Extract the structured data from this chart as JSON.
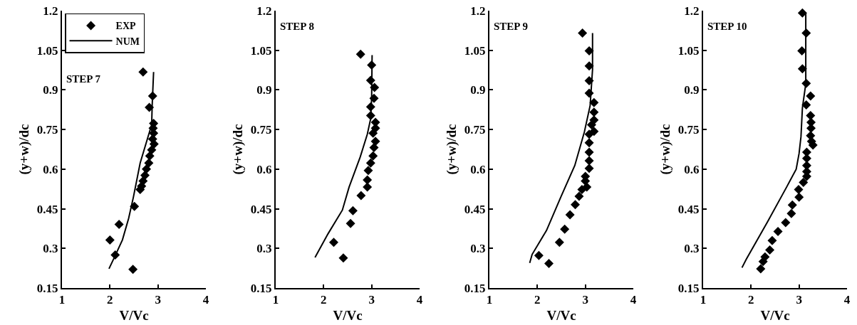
{
  "chart_data": [
    {
      "type": "scatter",
      "title": "STEP 7",
      "xlabel": "V/Vc",
      "ylabel": "(y+w)/dc",
      "xlim": [
        1,
        4
      ],
      "xticks": [
        1,
        2,
        3,
        4
      ],
      "ylim": [
        0.15,
        1.2
      ],
      "yticks": [
        0.15,
        0.3,
        0.45,
        0.6,
        0.75,
        0.9,
        1.05,
        1.2
      ],
      "grid": false,
      "legend": "top left",
      "series": [
        {
          "name": "EXP",
          "marker": "diamond",
          "color": "#000000",
          "x": [
            2.69,
            2.89,
            2.82,
            2.91,
            2.9,
            2.91,
            2.89,
            2.92,
            2.87,
            2.83,
            2.81,
            2.76,
            2.73,
            2.69,
            2.66,
            2.63,
            2.51,
            2.19,
            2.0,
            2.11,
            2.48
          ],
          "values": [
            0.968,
            0.877,
            0.834,
            0.773,
            0.755,
            0.736,
            0.714,
            0.695,
            0.673,
            0.65,
            0.623,
            0.6,
            0.577,
            0.555,
            0.536,
            0.523,
            0.459,
            0.391,
            0.332,
            0.275,
            0.221
          ]
        },
        {
          "name": "NUM",
          "type": "line",
          "line_style": "solid",
          "color": "#000000",
          "x": [
            1.98,
            2.11,
            2.26,
            2.39,
            2.49,
            2.63,
            2.81,
            2.87,
            2.88,
            2.91
          ],
          "values": [
            0.223,
            0.273,
            0.332,
            0.414,
            0.495,
            0.623,
            0.732,
            0.768,
            0.84,
            0.968
          ]
        }
      ]
    },
    {
      "type": "scatter",
      "title": "STEP 8",
      "xlabel": "V/Vc",
      "ylabel": "(y+w)/dc",
      "xlim": [
        1,
        4
      ],
      "xticks": [
        1,
        2,
        3,
        4
      ],
      "ylim": [
        0.15,
        1.2
      ],
      "yticks": [
        0.15,
        0.3,
        0.45,
        0.6,
        0.75,
        0.9,
        1.05,
        1.2
      ],
      "grid": false,
      "legend": false,
      "series": [
        {
          "marker": "diamond",
          "color": "#000000",
          "x": [
            2.77,
            3.0,
            2.98,
            3.06,
            3.05,
            2.98,
            2.98,
            3.08,
            3.08,
            3.03,
            3.08,
            3.05,
            3.03,
            2.98,
            2.93,
            2.91,
            2.91,
            2.78,
            2.61,
            2.56,
            2.21,
            2.41
          ],
          "values": [
            1.035,
            0.994,
            0.936,
            0.909,
            0.868,
            0.836,
            0.803,
            0.777,
            0.755,
            0.736,
            0.705,
            0.682,
            0.65,
            0.623,
            0.595,
            0.559,
            0.532,
            0.5,
            0.443,
            0.394,
            0.323,
            0.264
          ]
        },
        {
          "type": "line",
          "line_style": "solid",
          "color": "#000000",
          "x": [
            1.82,
            2.09,
            2.39,
            2.53,
            2.76,
            2.91,
            2.98,
            3.0,
            3.01
          ],
          "values": [
            0.266,
            0.355,
            0.445,
            0.532,
            0.645,
            0.732,
            0.791,
            0.868,
            1.032
          ]
        }
      ]
    },
    {
      "type": "scatter",
      "title": "STEP 9",
      "xlabel": "V/Vc",
      "ylabel": "(y+w)/dc",
      "xlim": [
        1,
        4
      ],
      "xticks": [
        1,
        2,
        3,
        4
      ],
      "ylim": [
        0.15,
        1.2
      ],
      "yticks": [
        0.15,
        0.3,
        0.45,
        0.6,
        0.75,
        0.9,
        1.05,
        1.2
      ],
      "grid": false,
      "legend": false,
      "series": [
        {
          "marker": "diamond",
          "color": "#000000",
          "x": [
            2.94,
            3.08,
            3.08,
            3.08,
            3.08,
            3.18,
            3.18,
            3.18,
            3.13,
            3.18,
            3.08,
            3.08,
            3.08,
            3.08,
            3.08,
            3.0,
            3.0,
            3.03,
            2.93,
            2.87,
            2.79,
            2.68,
            2.57,
            2.46,
            2.03,
            2.24
          ],
          "values": [
            1.115,
            1.048,
            0.991,
            0.935,
            0.888,
            0.852,
            0.816,
            0.786,
            0.768,
            0.743,
            0.732,
            0.7,
            0.664,
            0.632,
            0.603,
            0.573,
            0.555,
            0.532,
            0.523,
            0.497,
            0.466,
            0.427,
            0.373,
            0.323,
            0.273,
            0.243
          ]
        },
        {
          "type": "line",
          "line_style": "solid",
          "color": "#000000",
          "x": [
            1.84,
            1.89,
            2.19,
            2.49,
            2.78,
            2.98,
            3.1,
            3.15,
            3.15
          ],
          "values": [
            0.245,
            0.277,
            0.368,
            0.495,
            0.614,
            0.741,
            0.841,
            0.977,
            1.115
          ]
        }
      ]
    },
    {
      "type": "scatter",
      "title": "STEP 10",
      "xlabel": "V/Vc",
      "ylabel": "(y+w)/dc",
      "xlim": [
        1,
        4
      ],
      "xticks": [
        1,
        2,
        3,
        4
      ],
      "ylim": [
        0.15,
        1.2
      ],
      "yticks": [
        0.15,
        0.3,
        0.45,
        0.6,
        0.75,
        0.9,
        1.05,
        1.2
      ],
      "grid": false,
      "legend": false,
      "series": [
        {
          "marker": "diamond",
          "color": "#000000",
          "x": [
            3.07,
            3.15,
            3.06,
            3.07,
            3.15,
            3.24,
            3.15,
            3.24,
            3.25,
            3.25,
            3.24,
            3.26,
            3.29,
            3.16,
            3.16,
            3.16,
            3.16,
            3.16,
            3.09,
            2.99,
            3.0,
            2.86,
            2.84,
            2.72,
            2.56,
            2.44,
            2.39,
            2.29,
            2.25,
            2.2
          ],
          "values": [
            1.191,
            1.115,
            1.048,
            0.98,
            0.925,
            0.877,
            0.843,
            0.803,
            0.777,
            0.755,
            0.727,
            0.705,
            0.691,
            0.664,
            0.641,
            0.614,
            0.591,
            0.573,
            0.55,
            0.523,
            0.494,
            0.464,
            0.432,
            0.398,
            0.364,
            0.33,
            0.294,
            0.268,
            0.25,
            0.223
          ]
        },
        {
          "type": "line",
          "line_style": "solid",
          "color": "#000000",
          "x": [
            1.81,
            1.9,
            2.34,
            2.74,
            2.94,
            3.0,
            3.04,
            3.07,
            3.14,
            3.14
          ],
          "values": [
            0.227,
            0.259,
            0.4,
            0.532,
            0.6,
            0.659,
            0.723,
            0.832,
            0.923,
            1.191
          ]
        }
      ]
    }
  ]
}
